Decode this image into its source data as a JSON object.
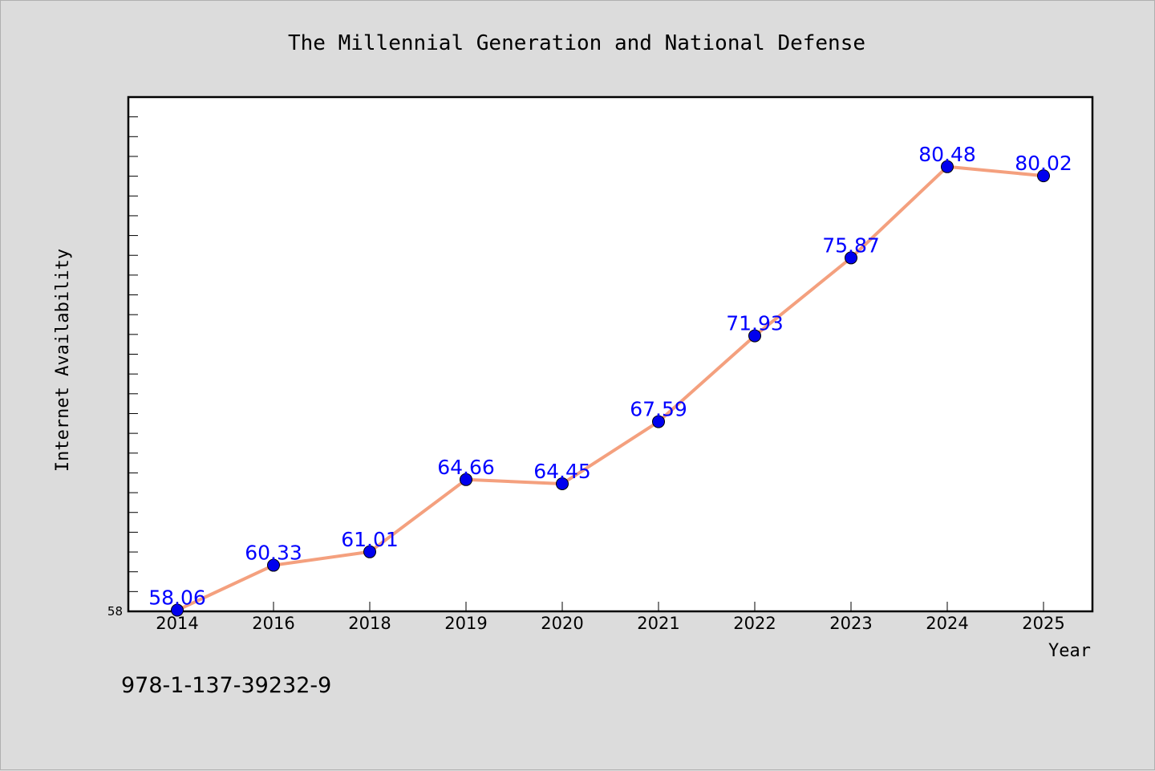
{
  "chart_data": {
    "type": "line",
    "title": "The Millennial Generation and National Defense",
    "xlabel": "Year",
    "ylabel": "Internet Availability",
    "categories": [
      "2014",
      "2016",
      "2018",
      "2019",
      "2020",
      "2021",
      "2022",
      "2023",
      "2024",
      "2025"
    ],
    "series": [
      {
        "values": [
          58.06,
          60.33,
          61.01,
          64.66,
          64.45,
          67.59,
          71.93,
          75.87,
          80.48,
          80.02
        ],
        "data_labels": [
          "58.06",
          "60.33",
          "61.01",
          "64.66",
          "64.45",
          "67.59",
          "71.93",
          "75.87",
          "80.48",
          "80.02"
        ],
        "line_color": "#f4a07e",
        "marker_color": "#0000ee"
      }
    ],
    "ylim": [
      58,
      84
    ],
    "y_tick_labels": [
      "58"
    ],
    "grid": false,
    "legend": "none"
  },
  "footer": {
    "isbn": "978-1-137-39232-9"
  },
  "colors": {
    "background": "#dcdcdc",
    "plot_background": "#ffffff",
    "data_label": "#0000ff"
  }
}
